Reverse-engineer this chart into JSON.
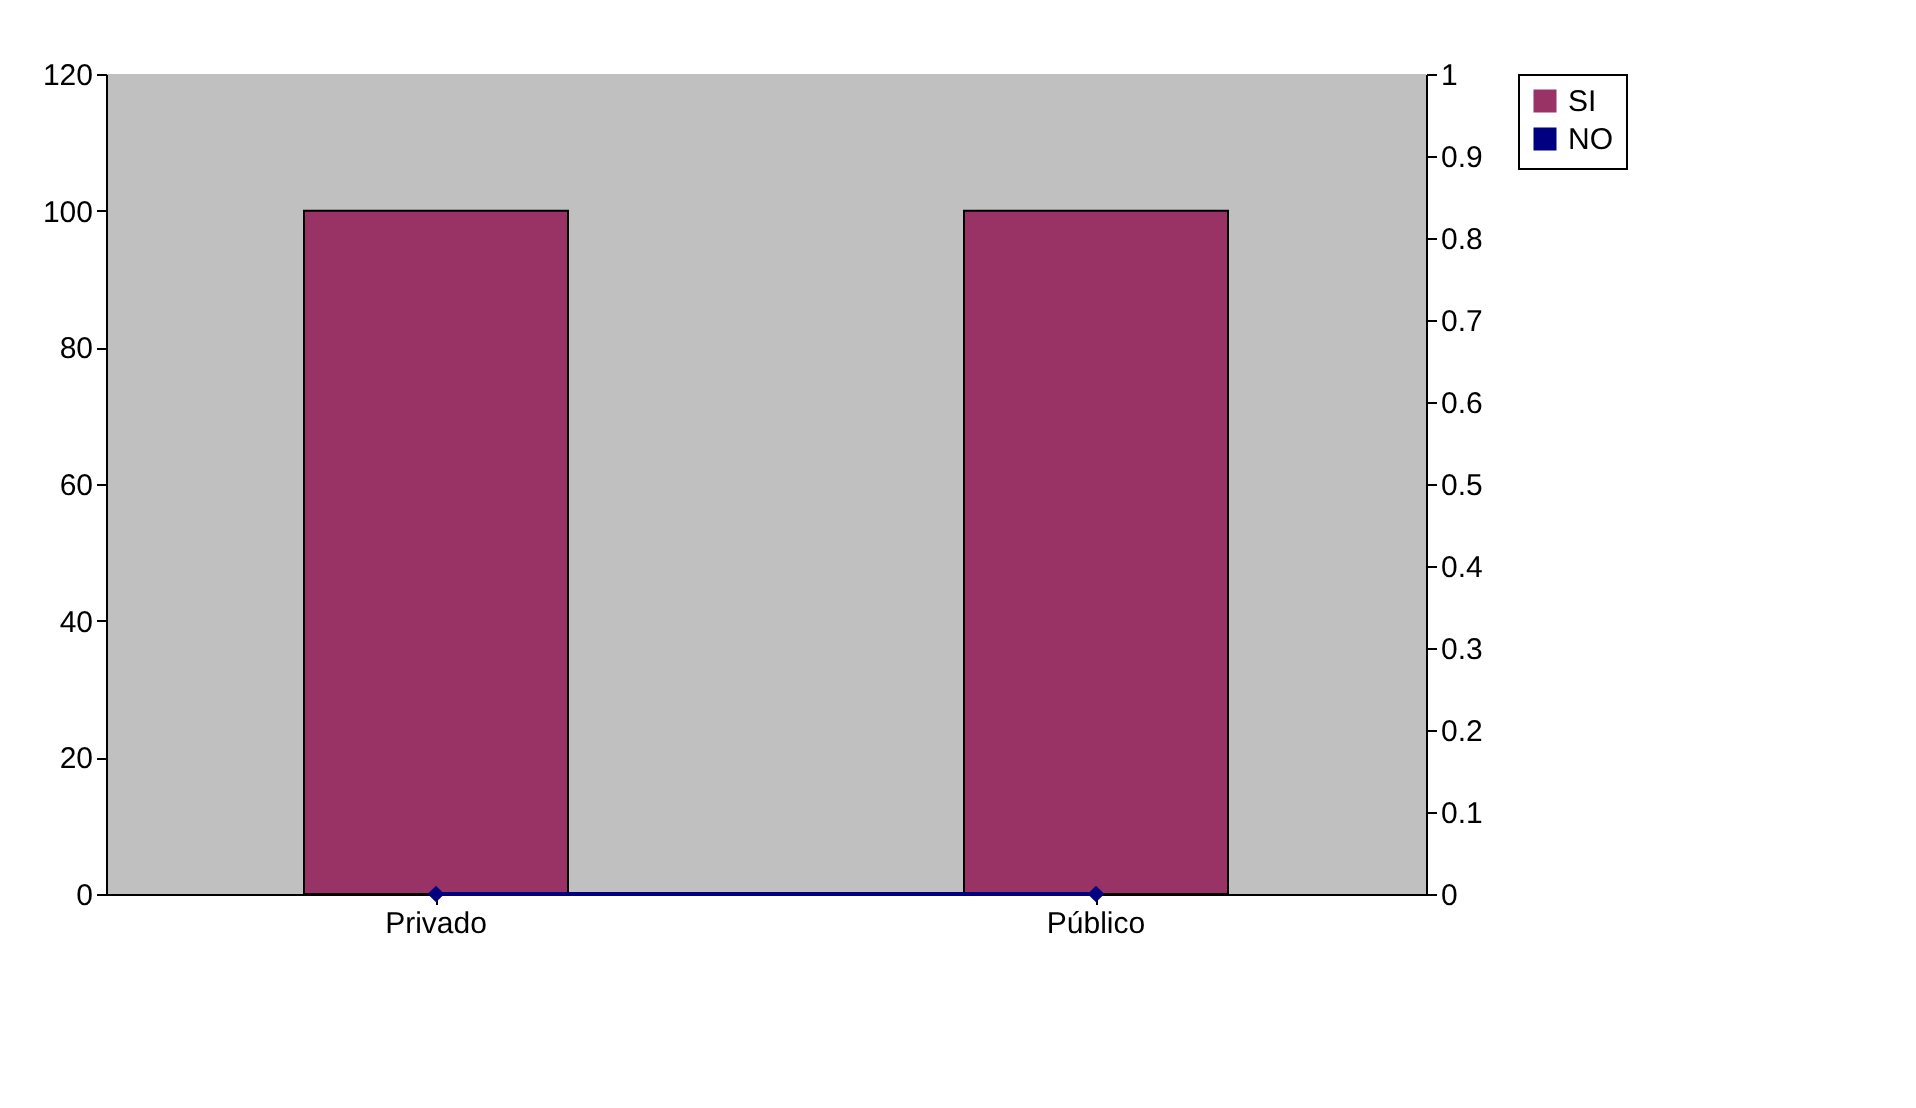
{
  "chart_data": {
    "type": "bar",
    "categories": [
      "Privado",
      "Público"
    ],
    "series": [
      {
        "name": "SI",
        "color": "#993366",
        "values": [
          100,
          100
        ]
      },
      {
        "name": "NO",
        "type": "line",
        "axis": "y2",
        "color": "#000080",
        "marker": "diamond",
        "line_style": "solid",
        "values": [
          0,
          0
        ]
      }
    ],
    "ylim": [
      0,
      120
    ],
    "yticks": [
      0,
      20,
      40,
      60,
      80,
      100,
      120
    ],
    "y2lim": [
      0,
      1
    ],
    "y2ticks": [
      0,
      0.1,
      0.2,
      0.3,
      0.4,
      0.5,
      0.6,
      0.7,
      0.8,
      0.9,
      1
    ],
    "grid": false,
    "legend": "right"
  }
}
